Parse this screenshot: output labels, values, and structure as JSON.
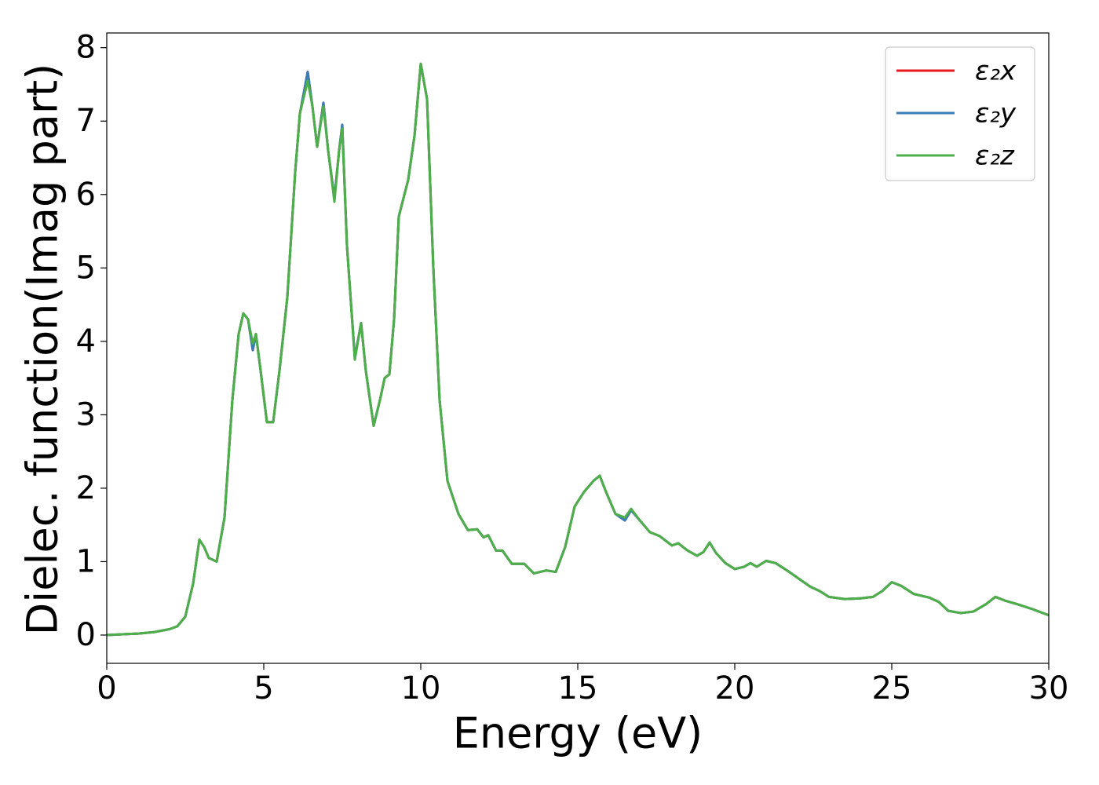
{
  "chart_data": {
    "type": "line",
    "xlabel": "Energy (eV)",
    "ylabel": "Dielec. function(Imag part)",
    "x": [
      0,
      0.5,
      1,
      1.5,
      2,
      2.25,
      2.5,
      2.75,
      2.95,
      3.1,
      3.25,
      3.5,
      3.75,
      4.0,
      4.2,
      4.35,
      4.5,
      4.65,
      4.75,
      4.9,
      5.1,
      5.3,
      5.5,
      5.75,
      6.0,
      6.15,
      6.4,
      6.55,
      6.7,
      6.9,
      7.05,
      7.25,
      7.4,
      7.5,
      7.65,
      7.9,
      8.1,
      8.25,
      8.5,
      8.7,
      8.85,
      9.0,
      9.15,
      9.3,
      9.6,
      9.8,
      10.0,
      10.2,
      10.4,
      10.6,
      10.85,
      11.2,
      11.5,
      11.8,
      12.0,
      12.15,
      12.4,
      12.6,
      12.9,
      13.3,
      13.6,
      14.0,
      14.3,
      14.6,
      14.9,
      15.2,
      15.5,
      15.7,
      15.9,
      16.2,
      16.5,
      16.7,
      17.0,
      17.3,
      17.6,
      18.0,
      18.2,
      18.5,
      18.8,
      19.0,
      19.2,
      19.4,
      19.7,
      20.0,
      20.3,
      20.5,
      20.7,
      21.0,
      21.3,
      21.7,
      22.1,
      22.4,
      22.7,
      23.0,
      23.5,
      24.0,
      24.4,
      24.7,
      25.0,
      25.3,
      25.7,
      26.2,
      26.5,
      26.8,
      27.2,
      27.6,
      28.0,
      28.3,
      28.6,
      29.0,
      29.5,
      30.0
    ],
    "series": [
      {
        "name": "ε₂x",
        "color": "#e41a1c",
        "values": [
          0.0,
          0.01,
          0.02,
          0.04,
          0.08,
          0.12,
          0.25,
          0.7,
          1.3,
          1.2,
          1.05,
          1.0,
          1.6,
          3.2,
          4.1,
          4.38,
          4.3,
          3.88,
          4.1,
          3.6,
          2.9,
          2.9,
          3.6,
          4.6,
          6.3,
          7.1,
          7.67,
          7.2,
          6.65,
          7.25,
          6.6,
          5.95,
          6.6,
          6.95,
          5.3,
          3.78,
          4.25,
          3.6,
          2.85,
          3.2,
          3.5,
          3.55,
          4.3,
          5.7,
          6.2,
          6.8,
          7.78,
          7.3,
          5.0,
          3.2,
          2.1,
          1.65,
          1.43,
          1.44,
          1.33,
          1.36,
          1.15,
          1.15,
          0.97,
          0.97,
          0.84,
          0.88,
          0.86,
          1.2,
          1.75,
          1.95,
          2.1,
          2.17,
          1.95,
          1.65,
          1.56,
          1.7,
          1.55,
          1.4,
          1.35,
          1.22,
          1.25,
          1.15,
          1.08,
          1.13,
          1.26,
          1.12,
          0.98,
          0.9,
          0.93,
          0.98,
          0.93,
          1.01,
          0.98,
          0.87,
          0.75,
          0.66,
          0.6,
          0.52,
          0.49,
          0.5,
          0.52,
          0.6,
          0.72,
          0.67,
          0.56,
          0.51,
          0.45,
          0.33,
          0.3,
          0.32,
          0.42,
          0.52,
          0.47,
          0.42,
          0.35,
          0.27
        ]
      },
      {
        "name": "ε₂y",
        "color": "#377eb8",
        "values": [
          0.0,
          0.01,
          0.02,
          0.04,
          0.08,
          0.12,
          0.25,
          0.7,
          1.3,
          1.2,
          1.05,
          1.0,
          1.6,
          3.2,
          4.1,
          4.38,
          4.3,
          3.88,
          4.1,
          3.6,
          2.9,
          2.9,
          3.6,
          4.6,
          6.3,
          7.1,
          7.67,
          7.2,
          6.65,
          7.25,
          6.6,
          5.95,
          6.6,
          6.95,
          5.3,
          3.78,
          4.25,
          3.6,
          2.85,
          3.2,
          3.5,
          3.55,
          4.3,
          5.7,
          6.2,
          6.8,
          7.78,
          7.3,
          5.0,
          3.2,
          2.1,
          1.65,
          1.43,
          1.44,
          1.33,
          1.36,
          1.15,
          1.15,
          0.97,
          0.97,
          0.84,
          0.88,
          0.86,
          1.2,
          1.75,
          1.95,
          2.1,
          2.17,
          1.95,
          1.65,
          1.56,
          1.7,
          1.55,
          1.4,
          1.35,
          1.22,
          1.25,
          1.15,
          1.08,
          1.13,
          1.26,
          1.12,
          0.98,
          0.9,
          0.93,
          0.98,
          0.93,
          1.01,
          0.98,
          0.87,
          0.75,
          0.66,
          0.6,
          0.52,
          0.49,
          0.5,
          0.52,
          0.6,
          0.72,
          0.67,
          0.56,
          0.51,
          0.45,
          0.33,
          0.3,
          0.32,
          0.42,
          0.52,
          0.47,
          0.42,
          0.35,
          0.27
        ]
      },
      {
        "name": "ε₂z",
        "color": "#4daf4a",
        "values": [
          0.0,
          0.01,
          0.02,
          0.04,
          0.08,
          0.12,
          0.25,
          0.7,
          1.3,
          1.2,
          1.05,
          1.0,
          1.6,
          3.2,
          4.1,
          4.38,
          4.3,
          3.97,
          4.1,
          3.6,
          2.9,
          2.9,
          3.6,
          4.6,
          6.3,
          7.1,
          7.55,
          7.2,
          6.65,
          7.2,
          6.6,
          5.9,
          6.6,
          6.9,
          5.3,
          3.75,
          4.25,
          3.6,
          2.85,
          3.2,
          3.5,
          3.55,
          4.3,
          5.7,
          6.2,
          6.8,
          7.78,
          7.3,
          5.0,
          3.2,
          2.1,
          1.65,
          1.43,
          1.44,
          1.33,
          1.36,
          1.15,
          1.15,
          0.97,
          0.97,
          0.84,
          0.88,
          0.86,
          1.2,
          1.75,
          1.95,
          2.1,
          2.17,
          1.95,
          1.65,
          1.6,
          1.72,
          1.55,
          1.4,
          1.35,
          1.22,
          1.25,
          1.15,
          1.08,
          1.13,
          1.26,
          1.12,
          0.98,
          0.9,
          0.93,
          0.98,
          0.93,
          1.01,
          0.98,
          0.87,
          0.75,
          0.66,
          0.6,
          0.52,
          0.49,
          0.5,
          0.52,
          0.6,
          0.72,
          0.67,
          0.56,
          0.51,
          0.45,
          0.33,
          0.3,
          0.32,
          0.42,
          0.52,
          0.47,
          0.42,
          0.35,
          0.27
        ]
      }
    ],
    "xlim": [
      0,
      30
    ],
    "xticks": [
      0,
      5,
      10,
      15,
      20,
      25,
      30
    ],
    "ylim": [
      -0.385,
      8.2
    ],
    "yticks": [
      0,
      1,
      2,
      3,
      4,
      5,
      6,
      7,
      8
    ],
    "grid": false,
    "legend": "upper right"
  }
}
